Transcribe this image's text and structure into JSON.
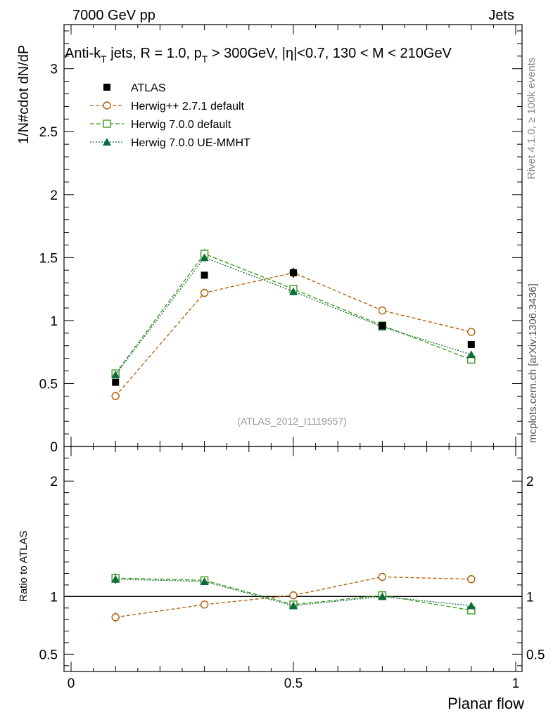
{
  "header": {
    "left": "7000 GeV pp",
    "right": "Jets"
  },
  "side_labels": {
    "rivet": "Rivet 4.1.0, ≥ 100k events",
    "mcplots": "mcplots.cern.ch [arXiv:1306.3436]"
  },
  "colors": {
    "atlas": "#000000",
    "herwigpp": "#b35900",
    "herwig7": "#3a9a1a",
    "herwig7ue": "#0f6a3c"
  },
  "chart_data": [
    {
      "type": "line",
      "panel": "main",
      "title": {
        "p1": "Anti-k",
        "s1": "T",
        "p2": " jets, R = 1.0, p",
        "s2": "T",
        "p3": " > 300GeV, |η|<0.7, 130 < M < 210GeV"
      },
      "ylabel": "1/N#cdot dN/dP",
      "xlim": [
        0,
        1
      ],
      "ylim": [
        0,
        3.35
      ],
      "yticks": [
        "0",
        "0.5",
        "1",
        "1.5",
        "2",
        "2.5",
        "3"
      ],
      "watermark": "(ATLAS_2012_I1119557)",
      "x": [
        0.1,
        0.3,
        0.5,
        0.7,
        0.9
      ],
      "series": [
        {
          "name": "ATLAS",
          "style": "data",
          "values": [
            0.51,
            1.36,
            1.38,
            0.96,
            0.81
          ],
          "errors": [
            0.02,
            0.02,
            0.04,
            0.02,
            0.02
          ]
        },
        {
          "name": "Herwig++ 2.7.1 default",
          "style": "circle",
          "values": [
            0.4,
            1.22,
            1.38,
            1.08,
            0.91
          ],
          "errors": [
            0.02,
            0.03,
            0.04,
            0.03,
            0.03
          ]
        },
        {
          "name": "Herwig 7.0.0 default",
          "style": "square",
          "values": [
            0.58,
            1.53,
            1.25,
            0.96,
            0.69
          ],
          "errors": [
            0.03,
            0.04,
            0.03,
            0.02,
            0.02
          ]
        },
        {
          "name": "Herwig 7.0.0 UE-MMHT",
          "style": "triangle",
          "values": [
            0.57,
            1.5,
            1.23,
            0.95,
            0.73
          ],
          "errors": [
            0.02,
            0.03,
            0.03,
            0.02,
            0.02
          ]
        }
      ]
    },
    {
      "type": "line",
      "panel": "ratio",
      "ylabel": "Ratio to ATLAS",
      "xlabel": "Planar flow",
      "xlim": [
        0,
        1
      ],
      "ylim": [
        0.35,
        2.3
      ],
      "yticks": [
        "0.5",
        "1",
        "2"
      ],
      "xticks": [
        "0",
        "0.5",
        "1"
      ],
      "x": [
        0.1,
        0.3,
        0.5,
        0.7,
        0.9
      ],
      "series": [
        {
          "name": "Herwig++ 2.7.1 default",
          "style": "circle",
          "values": [
            0.82,
            0.93,
            1.01,
            1.17,
            1.15
          ],
          "errors": [
            0.04,
            0.02,
            0.02,
            0.03,
            0.03
          ]
        },
        {
          "name": "Herwig 7.0.0 default",
          "style": "square",
          "values": [
            1.16,
            1.14,
            0.93,
            1.01,
            0.88
          ],
          "errors": [
            0.04,
            0.02,
            0.02,
            0.03,
            0.03
          ]
        },
        {
          "name": "Herwig 7.0.0 UE-MMHT",
          "style": "triangle",
          "values": [
            1.15,
            1.13,
            0.92,
            1.0,
            0.92
          ],
          "errors": [
            0.04,
            0.02,
            0.02,
            0.03,
            0.03
          ]
        }
      ]
    }
  ]
}
